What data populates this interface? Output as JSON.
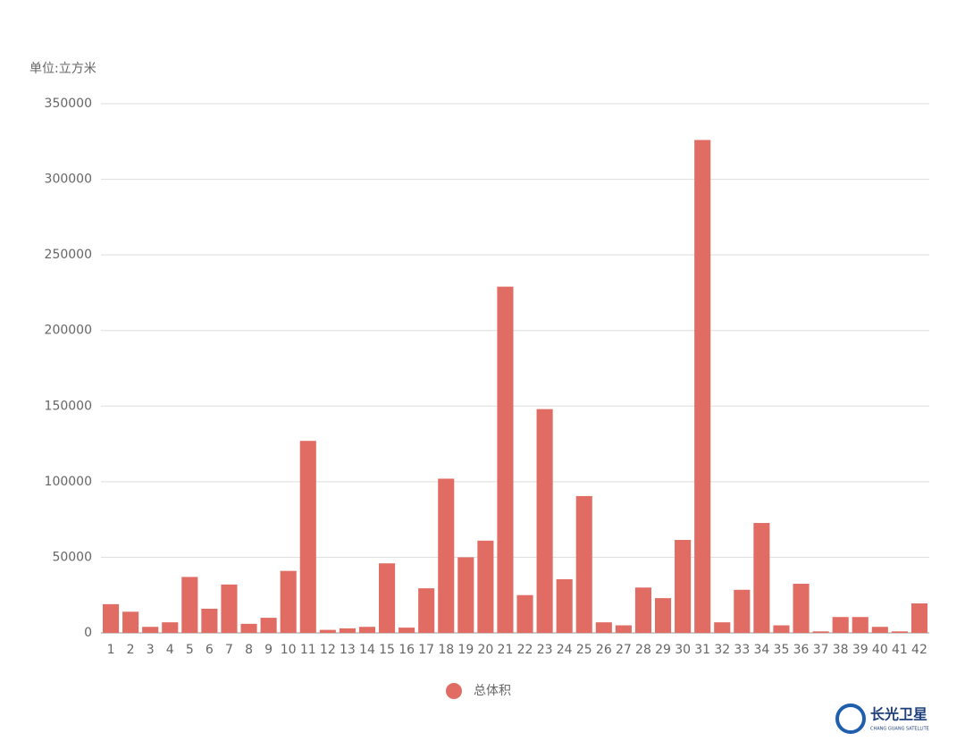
{
  "chart_data": {
    "type": "bar",
    "unit_label": "单位:立方米",
    "categories": [
      "1",
      "2",
      "3",
      "4",
      "5",
      "6",
      "7",
      "8",
      "9",
      "10",
      "11",
      "12",
      "13",
      "14",
      "15",
      "16",
      "17",
      "18",
      "19",
      "20",
      "21",
      "22",
      "23",
      "24",
      "25",
      "26",
      "27",
      "28",
      "29",
      "30",
      "31",
      "32",
      "33",
      "34",
      "35",
      "36",
      "37",
      "38",
      "39",
      "40",
      "41",
      "42"
    ],
    "series": [
      {
        "name": "总体积",
        "color": "#e06c63",
        "values": [
          19000,
          14000,
          4000,
          7000,
          37000,
          16000,
          32000,
          6000,
          10000,
          41000,
          127000,
          2000,
          3000,
          4000,
          46000,
          3500,
          29500,
          102000,
          50000,
          61000,
          229000,
          25000,
          148000,
          35500,
          90500,
          7000,
          5000,
          30000,
          23000,
          61500,
          326000,
          7000,
          28500,
          72700,
          5000,
          32500,
          1000,
          10500,
          10500,
          4000,
          1000,
          19500
        ]
      }
    ],
    "ylim": [
      0,
      350000
    ],
    "yticks": [
      0,
      50000,
      100000,
      150000,
      200000,
      250000,
      300000,
      350000
    ],
    "grid": true
  },
  "logo": {
    "name": "长光卫星",
    "subtitle": "CHANG GUANG SATELLITE"
  }
}
